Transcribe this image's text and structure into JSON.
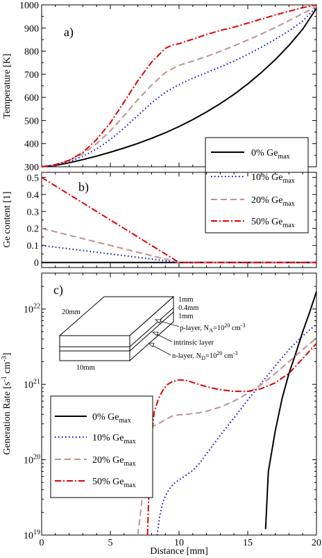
{
  "chart_data": [
    {
      "panel_label": "a)",
      "type": "line",
      "ylabel": "Temperature [K]",
      "xlim": [
        0,
        20
      ],
      "ylim": [
        300,
        1000
      ],
      "x_ticks": [
        "0",
        "5",
        "10",
        "15",
        "20"
      ],
      "y_ticks": [
        "300",
        "400",
        "500",
        "600",
        "700",
        "800",
        "900",
        "1000"
      ],
      "legend": {
        "position": "bottom-right",
        "entries": [
          {
            "base": "0% Ge",
            "sub": "max"
          },
          {
            "base": "10% Ge",
            "sub": "max"
          },
          {
            "base": "20% Ge",
            "sub": "max"
          },
          {
            "base": "50% Ge",
            "sub": "max"
          }
        ]
      },
      "series": [
        {
          "color": "#000000",
          "dash": "solid",
          "x": [
            0,
            1,
            2,
            3,
            4,
            5,
            6,
            7,
            8,
            9,
            10,
            11,
            12,
            13,
            14,
            15,
            16,
            17,
            18,
            19,
            20
          ],
          "y": [
            300,
            306,
            317,
            331,
            346,
            363,
            381,
            401,
            423,
            447,
            474,
            504,
            537,
            573,
            613,
            658,
            708,
            763,
            825,
            895,
            985
          ]
        },
        {
          "color": "#0000cc",
          "dash": "dotted",
          "x": [
            0,
            1,
            2,
            3,
            4,
            5,
            6,
            7,
            8,
            9,
            10,
            11,
            12,
            13,
            14,
            15,
            16,
            17,
            18,
            19,
            20
          ],
          "y": [
            300,
            307,
            322,
            345,
            377,
            418,
            467,
            522,
            576,
            622,
            655,
            683,
            707,
            731,
            757,
            786,
            817,
            851,
            888,
            930,
            990
          ]
        },
        {
          "color": "#c09090",
          "dash": "dashed",
          "x": [
            0,
            1,
            2,
            3,
            4,
            5,
            6,
            7,
            8,
            9,
            10,
            11,
            12,
            13,
            14,
            15,
            16,
            17,
            18,
            19,
            20
          ],
          "y": [
            300,
            308,
            327,
            356,
            400,
            455,
            521,
            590,
            653,
            707,
            739,
            757,
            777,
            799,
            823,
            848,
            874,
            902,
            932,
            962,
            993
          ]
        },
        {
          "color": "#dd0000",
          "dash": "dashdot",
          "x": [
            0,
            1,
            2,
            3,
            4,
            5,
            6,
            7,
            8,
            9,
            9.5,
            10,
            11,
            12,
            13,
            14,
            15,
            16,
            17,
            18,
            19,
            20
          ],
          "y": [
            300,
            309,
            328,
            362,
            418,
            490,
            580,
            672,
            752,
            812,
            826,
            832,
            852,
            872,
            889,
            904,
            921,
            939,
            956,
            972,
            988,
            1000
          ]
        }
      ]
    },
    {
      "panel_label": "b)",
      "type": "line",
      "ylabel": "Ge content [1]",
      "xlim": [
        0,
        20
      ],
      "ylim": [
        -0.03,
        0.53
      ],
      "x_ticks": [
        "0",
        "5",
        "10",
        "15",
        "20"
      ],
      "y_ticks": [
        "0",
        "0.1",
        "0.2",
        "0.3",
        "0.4",
        "0.5"
      ],
      "series": [
        {
          "color": "#000000",
          "dash": "solid",
          "x": [
            0,
            20
          ],
          "y": [
            0,
            0
          ]
        },
        {
          "color": "#0000cc",
          "dash": "dotted",
          "x": [
            0,
            10,
            20
          ],
          "y": [
            0.1,
            0,
            0
          ]
        },
        {
          "color": "#c09090",
          "dash": "dashed",
          "x": [
            0,
            10,
            20
          ],
          "y": [
            0.2,
            0,
            0
          ]
        },
        {
          "color": "#dd0000",
          "dash": "dashdot",
          "x": [
            0,
            10,
            20
          ],
          "y": [
            0.5,
            0,
            0
          ]
        }
      ]
    },
    {
      "panel_label": "c)",
      "type": "line",
      "scale_y": "log",
      "xlabel": "Distance [mm]",
      "ylabel_parts": {
        "a": "Generation Rate [s",
        "b": "-1",
        "c": " cm",
        "d": "-3",
        "e": "]"
      },
      "xlim": [
        0,
        20
      ],
      "ylim": [
        1e+19,
        3e+22
      ],
      "x_ticks": [
        "0",
        "5",
        "10",
        "15",
        "20"
      ],
      "y_ticks": [
        {
          "base": "10",
          "exp": "19"
        },
        {
          "base": "10",
          "exp": "20"
        },
        {
          "base": "10",
          "exp": "21"
        },
        {
          "base": "10",
          "exp": "22"
        }
      ],
      "legend": {
        "position": "bottom-left",
        "entries": [
          {
            "base": "0% Ge",
            "sub": "max"
          },
          {
            "base": "10% Ge",
            "sub": "max"
          },
          {
            "base": "20% Ge",
            "sub": "max"
          },
          {
            "base": "50% Ge",
            "sub": "max"
          }
        ]
      },
      "inset": {
        "dim_width": "20mm",
        "dim_depth": "10mm",
        "thickness_labels": [
          "1mm",
          "0.4mm",
          "1mm"
        ],
        "p_layer": {
          "a": "p-layer, N",
          "b": "A",
          "c": "=10",
          "d": "20",
          "e": " cm",
          "f": "-3"
        },
        "intrinsic": "intrinsic layer",
        "n_layer": {
          "a": "n-layer, N",
          "b": "D",
          "c": "=10",
          "d": "20",
          "e": " cm",
          "f": "-3"
        }
      },
      "series": [
        {
          "color": "#000000",
          "dash": "solid",
          "x": [
            16.3,
            16.5,
            17,
            17.5,
            18,
            18.5,
            19,
            19.5,
            20
          ],
          "y": [
            1.2e+19,
            7e+19,
            2.4e+20,
            6.5e+20,
            1.4e+21,
            2.6e+21,
            5e+21,
            9e+21,
            1.7e+22
          ]
        },
        {
          "color": "#0000cc",
          "dash": "dotted",
          "x": [
            8.4,
            8.6,
            8.8,
            9,
            9.3,
            9.6,
            10,
            10.5,
            11,
            11.5,
            12,
            13,
            14,
            15,
            16,
            17,
            18,
            19,
            20
          ],
          "y": [
            1e+19,
            1.8e+19,
            2.6e+19,
            3.3e+19,
            4.1e+19,
            4.8e+19,
            5.4e+19,
            6.2e+19,
            7.2e+19,
            9e+19,
            1.2e+20,
            2.1e+20,
            3.6e+20,
            6.2e+20,
            1.05e+21,
            1.75e+21,
            2.9e+21,
            4.4e+21,
            6.3e+21
          ]
        },
        {
          "color": "#c09090",
          "dash": "dashed",
          "x": [
            7.0,
            7.2,
            7.5,
            7.8,
            8.1,
            8.5,
            9,
            9.5,
            10,
            10.5,
            11,
            11.5,
            12,
            13,
            14,
            15,
            16,
            17,
            18,
            19,
            20
          ],
          "y": [
            1e+19,
            2e+19,
            6e+19,
            1.6e+20,
            2.8e+20,
            3e+20,
            3.4e+20,
            3.8e+20,
            3.95e+20,
            4e+20,
            4.1e+20,
            4.2e+20,
            4.4e+20,
            5e+20,
            6e+20,
            7.6e+20,
            1e+21,
            1.4e+21,
            2e+21,
            2.9e+21,
            4.1e+21
          ]
        },
        {
          "color": "#dd0000",
          "dash": "dashdot",
          "x": [
            7.7,
            7.85,
            8,
            8.2,
            8.5,
            8.8,
            9.1,
            9.5,
            10,
            10.5,
            11,
            12,
            13,
            14,
            15,
            16,
            17,
            18,
            19,
            20
          ],
          "y": [
            1e+19,
            6e+19,
            2.2e+20,
            4.4e+20,
            6.4e+20,
            8.2e+20,
            9.8e+20,
            1.09e+21,
            1.15e+21,
            1.13e+21,
            1.06e+21,
            9.3e+20,
            8.5e+20,
            8.1e+20,
            8.1e+20,
            8.8e+20,
            1.05e+21,
            1.4e+21,
            2.2e+21,
            3.5e+21
          ]
        }
      ]
    }
  ]
}
